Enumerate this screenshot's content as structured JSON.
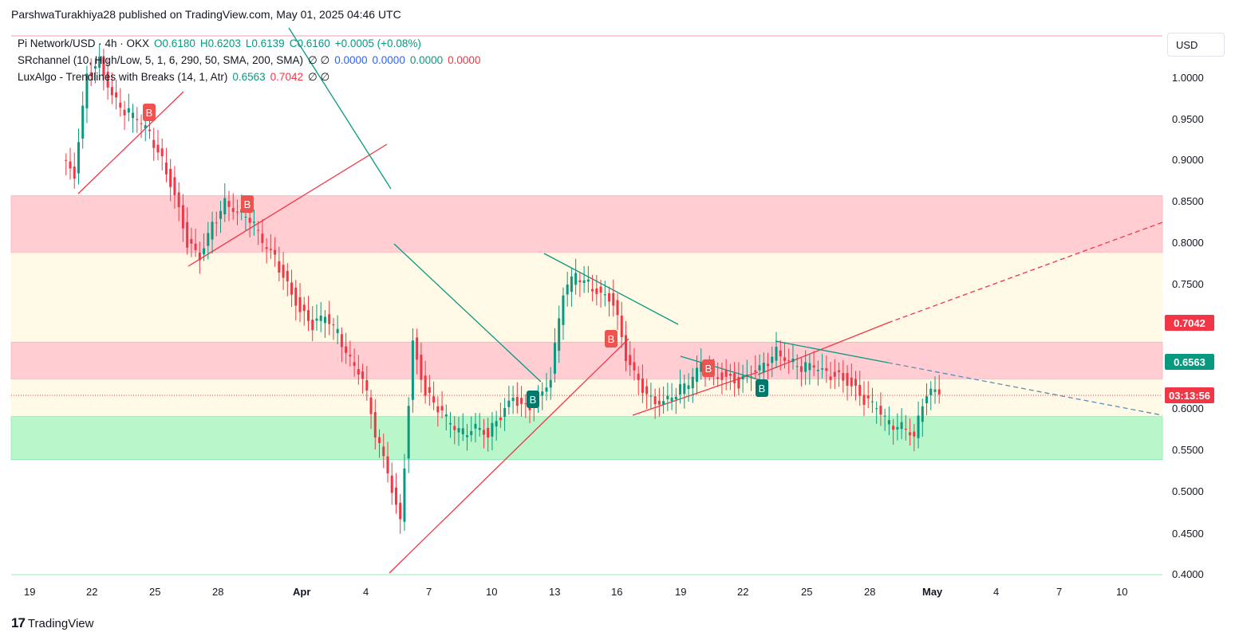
{
  "header": {
    "text": "ParshwaTurakhiya28 published on TradingView.com, May 01, 2025 04:46 UTC"
  },
  "legend": {
    "symbol": "Pi Network/USD · 4h · OKX",
    "open": "O0.6180",
    "high": "H0.6203",
    "low": "L0.6139",
    "close": "C0.6160",
    "change": "+0.0005 (+0.08%)",
    "sr_name": "SRchannel (10, High/Low, 5, 1, 6, 290, 50, SMA, 200, SMA)",
    "sr_icons": "∅ ∅",
    "sr_v1": "0.0000",
    "sr_v2": "0.0000",
    "sr_v3": "0.0000",
    "sr_v4": "0.0000",
    "lux_name": "LuxAlgo - Trendlines with Breaks (14, 1, Atr)",
    "lux_v1": "0.6563",
    "lux_v2": "0.7042",
    "lux_icons": "∅ ∅"
  },
  "currency": "USD",
  "price_tags": {
    "upper": "0.7042",
    "lower": "0.6563",
    "countdown": "03:13:56"
  },
  "footer": {
    "brand": "TradingView"
  },
  "colors": {
    "up": "#089981",
    "down": "#f23645",
    "resistance_zone": "#ffcdd2",
    "support_zone": "#b9f6ca",
    "neutral_zone": "#fff9e6"
  },
  "chart_data": {
    "type": "candlestick",
    "symbol": "Pi Network/USD",
    "interval": "4h",
    "yticks": [
      "1.0000",
      "0.9500",
      "0.9000",
      "0.8500",
      "0.8000",
      "0.7500",
      "0.6000",
      "0.5500",
      "0.5000",
      "0.4500",
      "0.4000"
    ],
    "xticks": [
      "19",
      "22",
      "25",
      "28",
      "Apr",
      "4",
      "7",
      "10",
      "13",
      "16",
      "19",
      "22",
      "25",
      "28",
      "May",
      "4",
      "7",
      "10"
    ],
    "ylim": [
      0.4,
      1.05
    ],
    "zones": [
      {
        "name": "resistance-upper",
        "from": 0.788,
        "to": 0.857,
        "color": "#ffcdd2"
      },
      {
        "name": "neutral",
        "from": 0.68,
        "to": 0.788,
        "color": "#fff9e6"
      },
      {
        "name": "resistance-lower",
        "from": 0.635,
        "to": 0.68,
        "color": "#ffcdd2"
      },
      {
        "name": "neutral-2",
        "from": 0.59,
        "to": 0.635,
        "color": "#fff9e6"
      },
      {
        "name": "support",
        "from": 0.538,
        "to": 0.59,
        "color": "#b9f6ca"
      }
    ],
    "close_series": [
      0.88,
      1.0,
      1.02,
      0.98,
      0.96,
      0.95,
      0.93,
      0.9,
      0.86,
      0.8,
      0.78,
      0.82,
      0.85,
      0.84,
      0.83,
      0.8,
      0.78,
      0.75,
      0.72,
      0.7,
      0.71,
      0.69,
      0.66,
      0.64,
      0.57,
      0.52,
      0.46,
      0.68,
      0.62,
      0.6,
      0.58,
      0.57,
      0.58,
      0.57,
      0.59,
      0.61,
      0.6,
      0.61,
      0.64,
      0.74,
      0.76,
      0.75,
      0.74,
      0.73,
      0.66,
      0.63,
      0.61,
      0.61,
      0.62,
      0.63,
      0.65,
      0.64,
      0.64,
      0.63,
      0.64,
      0.65,
      0.67,
      0.66,
      0.65,
      0.65,
      0.64,
      0.64,
      0.63,
      0.61,
      0.6,
      0.58,
      0.58,
      0.57,
      0.62,
      0.616
    ],
    "signals": [
      {
        "label": "B",
        "type": "down",
        "x": 187,
        "y": 141
      },
      {
        "label": "B",
        "type": "down",
        "x": 310,
        "y": 256
      },
      {
        "label": "B",
        "type": "up",
        "x": 668,
        "y": 501
      },
      {
        "label": "B",
        "type": "down",
        "x": 766,
        "y": 425
      },
      {
        "label": "B",
        "type": "down",
        "x": 888,
        "y": 462
      },
      {
        "label": "B",
        "type": "up",
        "x": 955,
        "y": 487
      }
    ]
  }
}
